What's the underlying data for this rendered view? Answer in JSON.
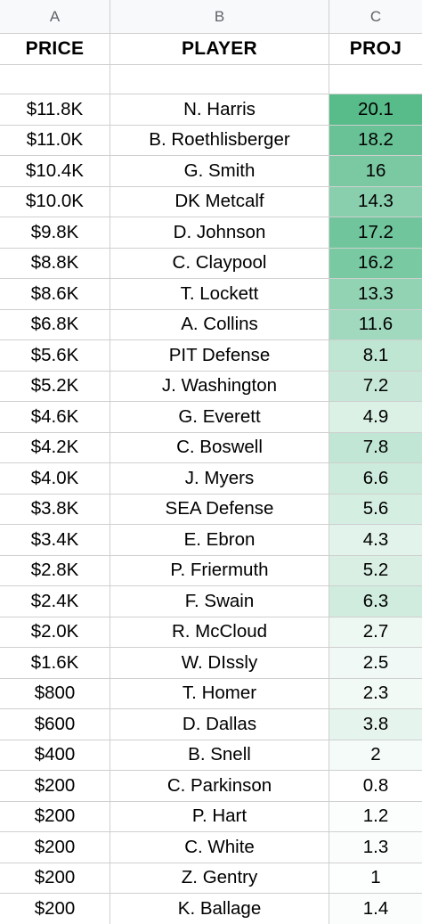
{
  "columns": [
    "A",
    "B",
    "C"
  ],
  "headers": {
    "price": "PRICE",
    "player": "PLAYER",
    "proj": "PROJ"
  },
  "scale": {
    "min_color": "#ffffff",
    "max_color": "#57bb8a"
  },
  "rows": [
    {
      "price": "$11.8K",
      "player": "N. Harris",
      "proj": "20.1"
    },
    {
      "price": "$11.0K",
      "player": "B. Roethlisberger",
      "proj": "18.2"
    },
    {
      "price": "$10.4K",
      "player": "G. Smith",
      "proj": "16"
    },
    {
      "price": "$10.0K",
      "player": "DK Metcalf",
      "proj": "14.3"
    },
    {
      "price": "$9.8K",
      "player": "D. Johnson",
      "proj": "17.2"
    },
    {
      "price": "$8.8K",
      "player": "C. Claypool",
      "proj": "16.2"
    },
    {
      "price": "$8.6K",
      "player": "T. Lockett",
      "proj": "13.3"
    },
    {
      "price": "$6.8K",
      "player": "A. Collins",
      "proj": "11.6"
    },
    {
      "price": "$5.6K",
      "player": "PIT Defense",
      "proj": "8.1"
    },
    {
      "price": "$5.2K",
      "player": "J. Washington",
      "proj": "7.2"
    },
    {
      "price": "$4.6K",
      "player": "G. Everett",
      "proj": "4.9"
    },
    {
      "price": "$4.2K",
      "player": "C. Boswell",
      "proj": "7.8"
    },
    {
      "price": "$4.0K",
      "player": "J. Myers",
      "proj": "6.6"
    },
    {
      "price": "$3.8K",
      "player": "SEA Defense",
      "proj": "5.6"
    },
    {
      "price": "$3.4K",
      "player": "E. Ebron",
      "proj": "4.3"
    },
    {
      "price": "$2.8K",
      "player": "P. Friermuth",
      "proj": "5.2"
    },
    {
      "price": "$2.4K",
      "player": "F. Swain",
      "proj": "6.3"
    },
    {
      "price": "$2.0K",
      "player": "R. McCloud",
      "proj": "2.7"
    },
    {
      "price": "$1.6K",
      "player": "W. DIssly",
      "proj": "2.5"
    },
    {
      "price": "$800",
      "player": "T. Homer",
      "proj": "2.3"
    },
    {
      "price": "$600",
      "player": "D. Dallas",
      "proj": "3.8"
    },
    {
      "price": "$400",
      "player": "B. Snell",
      "proj": "2"
    },
    {
      "price": "$200",
      "player": "C. Parkinson",
      "proj": "0.8"
    },
    {
      "price": "$200",
      "player": "P. Hart",
      "proj": "1.2"
    },
    {
      "price": "$200",
      "player": "C. White",
      "proj": "1.3"
    },
    {
      "price": "$200",
      "player": "Z. Gentry",
      "proj": "1"
    },
    {
      "price": "$200",
      "player": "K. Ballage",
      "proj": "1.4"
    }
  ]
}
